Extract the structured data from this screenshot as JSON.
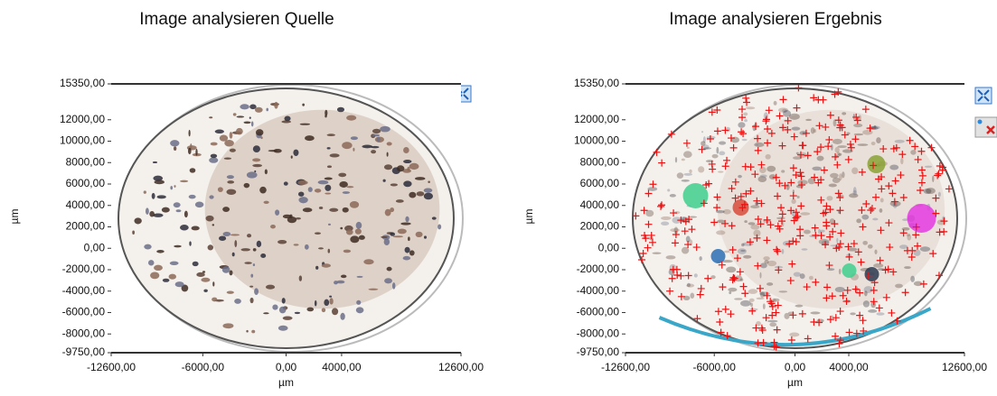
{
  "panels": [
    {
      "title": "Image analysieren Quelle",
      "y_ticks": [
        "15350,00",
        "12000,00",
        "10000,00",
        "8000,00",
        "6000,00",
        "4000,00",
        "2000,00",
        "0,00",
        "-2000,00",
        "-4000,00",
        "-6000,00",
        "-8000,00",
        "-9750,00"
      ],
      "x_ticks": [
        "-12600,00",
        "-6000,00",
        "0,00",
        "4000,00",
        "12600,00"
      ],
      "y_label": "µm",
      "x_label": "µm"
    },
    {
      "title": "Image analysieren Ergebnis",
      "y_ticks": [
        "15350,00",
        "12000,00",
        "10000,00",
        "8000,00",
        "6000,00",
        "4000,00",
        "2000,00",
        "0,00",
        "-2000,00",
        "-4000,00",
        "-6000,00",
        "-8000,00",
        "-9750,00"
      ],
      "x_ticks": [
        "-12600,00",
        "-6000,00",
        "0,00",
        "4000,00",
        "12600,00"
      ],
      "y_label": "µm",
      "x_label": "µm"
    }
  ]
}
